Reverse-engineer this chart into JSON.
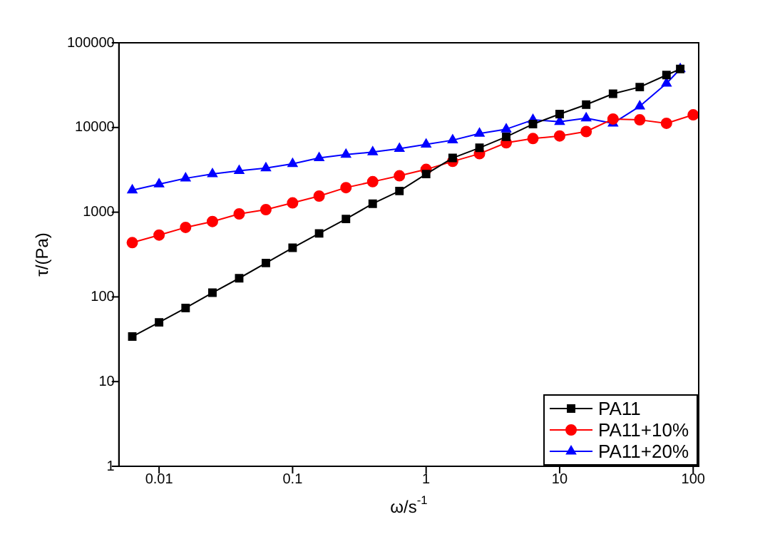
{
  "chart_data": {
    "type": "line",
    "xlabel": "ω/s$^{-1}$",
    "ylabel": "τ/(Pa)",
    "log": "xy",
    "xlim": [
      0.005,
      110
    ],
    "ylim": [
      1,
      100000
    ],
    "xticks": [
      0.01,
      0.1,
      1,
      10,
      100
    ],
    "yticks": [
      1,
      10,
      100,
      1000,
      10000,
      100000
    ],
    "legend": "bottom right",
    "grid": false,
    "line_style": "solid",
    "series": [
      {
        "name": "PA11",
        "color": "#000000",
        "marker": "square",
        "x": [
          0.0063,
          0.01,
          0.0158,
          0.0251,
          0.0398,
          0.0631,
          0.1,
          0.158,
          0.251,
          0.398,
          0.631,
          1,
          1.58,
          2.51,
          3.98,
          6.31,
          10,
          15.8,
          25.1,
          39.8,
          63.1,
          80
        ],
        "values": [
          34,
          50,
          74,
          112,
          166,
          251,
          380,
          562,
          832,
          1259,
          1778,
          2818,
          4365,
          5754,
          7762,
          10965,
          14400,
          18600,
          25000,
          30000,
          41600,
          49000
        ]
      },
      {
        "name": "PA11+10%",
        "color": "#ff0000",
        "marker": "circle",
        "x": [
          0.0063,
          0.01,
          0.0158,
          0.0251,
          0.0398,
          0.0631,
          0.1,
          0.158,
          0.251,
          0.398,
          0.631,
          1,
          1.58,
          2.51,
          3.98,
          6.31,
          10,
          15.8,
          25.1,
          39.8,
          63.1,
          100
        ],
        "values": [
          437,
          537,
          661,
          776,
          955,
          1072,
          1288,
          1549,
          1950,
          2290,
          2690,
          3200,
          3980,
          4900,
          6600,
          7400,
          7940,
          8950,
          12600,
          12300,
          11200,
          14100
        ]
      },
      {
        "name": "PA11+20%",
        "color": "#0000ff",
        "marker": "triangle",
        "x": [
          0.0063,
          0.01,
          0.0158,
          0.0251,
          0.0398,
          0.0631,
          0.1,
          0.158,
          0.251,
          0.398,
          0.631,
          1,
          1.58,
          2.51,
          3.98,
          6.31,
          10,
          15.8,
          25.1,
          39.8,
          63.1,
          80
        ],
        "values": [
          1820,
          2140,
          2510,
          2820,
          3090,
          3310,
          3720,
          4370,
          4790,
          5130,
          5620,
          6310,
          7080,
          8500,
          9550,
          12300,
          11700,
          12900,
          11200,
          17800,
          33100,
          49000
        ]
      }
    ]
  }
}
